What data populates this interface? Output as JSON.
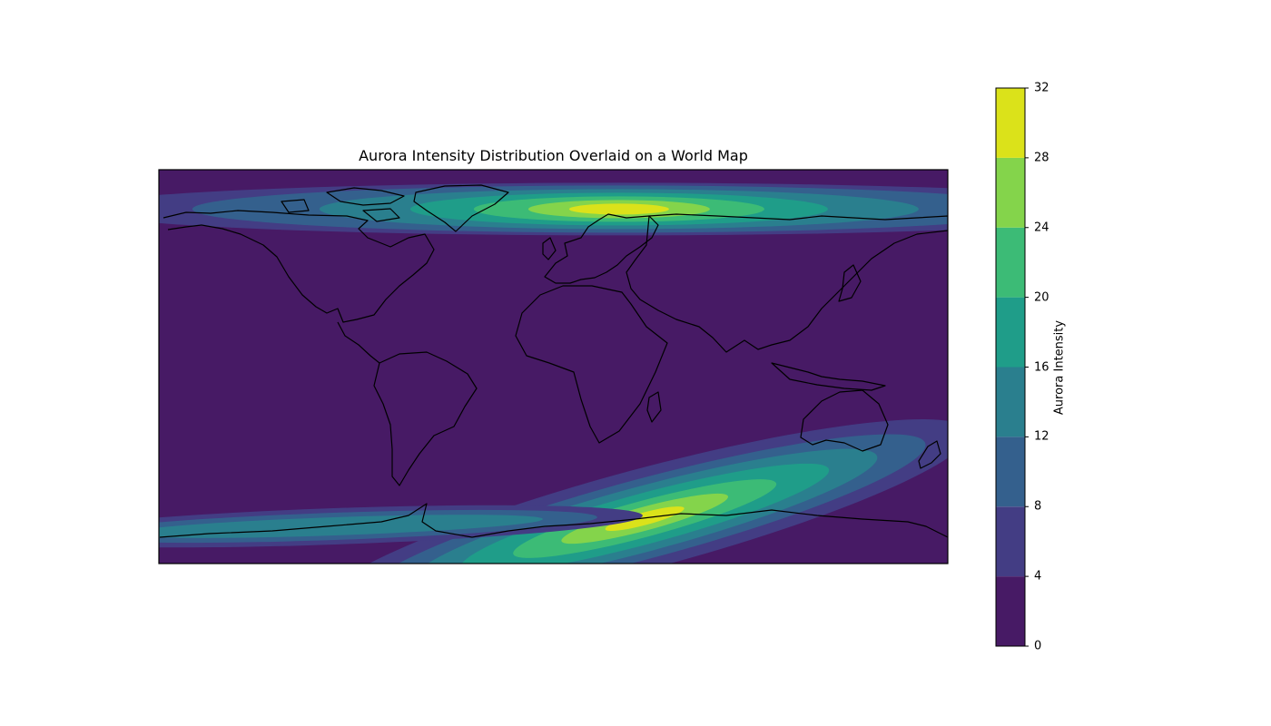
{
  "chart_data": {
    "type": "heatmap",
    "title": "Aurora Intensity Distribution Overlaid on a World Map",
    "xlabel": "",
    "ylabel": "",
    "xlim": [
      -180,
      180
    ],
    "ylim": [
      -90,
      90
    ],
    "colorbar": {
      "label": "Aurora Intensity",
      "levels": [
        0,
        4,
        8,
        12,
        16,
        20,
        24,
        28,
        32
      ],
      "tick_labels": [
        "0",
        "4",
        "8",
        "12",
        "16",
        "20",
        "24",
        "28",
        "32"
      ],
      "colors": [
        "#471a65",
        "#433d84",
        "#34608d",
        "#2a7f8e",
        "#1f9d89",
        "#3cbb76",
        "#84d44b",
        "#dbe21a"
      ]
    },
    "features": [
      {
        "name": "northern auroral oval",
        "center_lat": 72,
        "peak_lon": 30,
        "peak_value": 30
      },
      {
        "name": "southern auroral oval",
        "peak_lat": -67,
        "peak_lon": 50,
        "peak_value": 30
      }
    ],
    "legend": "colorbar right",
    "grid": false
  }
}
